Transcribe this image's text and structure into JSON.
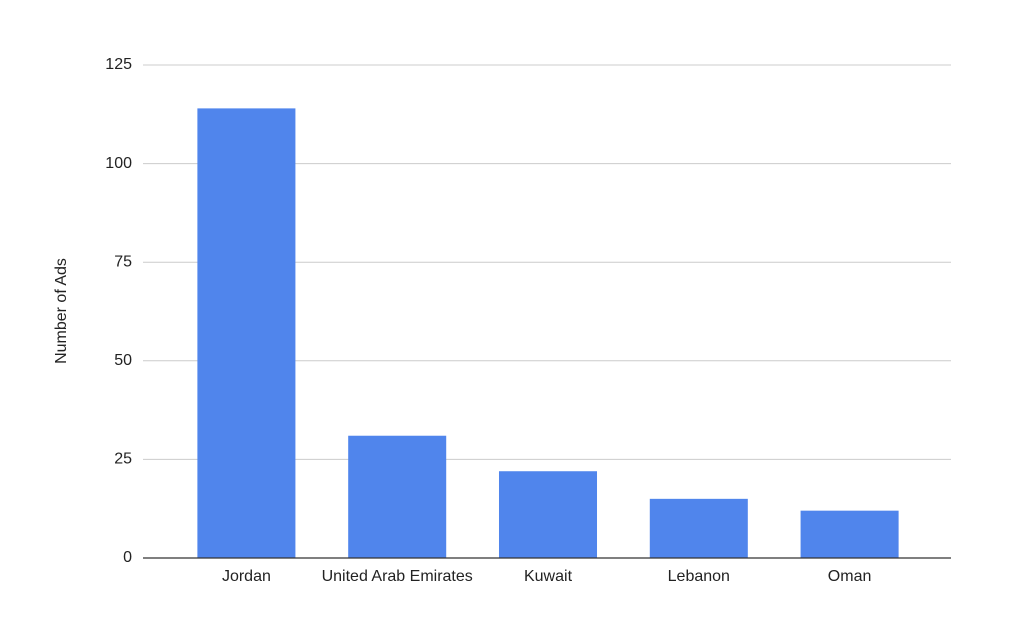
{
  "chart_data": {
    "type": "bar",
    "y_label": "Number of Ads",
    "categories": [
      "Jordan",
      "United Arab Emirates",
      "Kuwait",
      "Lebanon",
      "Oman"
    ],
    "values": [
      114,
      31,
      22,
      15,
      12
    ],
    "color": "#5085ec",
    "ylim": [
      0,
      125
    ],
    "yticks": [
      0,
      25,
      50,
      75,
      100,
      125
    ],
    "grid": true
  }
}
